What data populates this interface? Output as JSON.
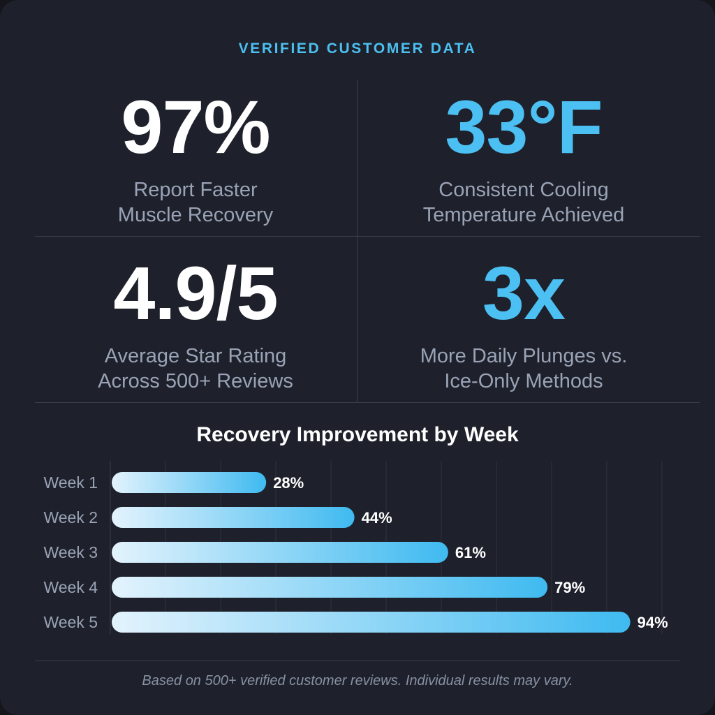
{
  "header": {
    "eyebrow": "VERIFIED CUSTOMER DATA"
  },
  "stats": [
    {
      "value": "97%",
      "label_line1": "Report Faster",
      "label_line2": "Muscle Recovery"
    },
    {
      "value": "33°F",
      "label_line1": "Consistent Cooling",
      "label_line2": "Temperature Achieved"
    },
    {
      "value": "4.9/5",
      "label_line1": "Average Star Rating",
      "label_line2": "Across 500+ Reviews"
    },
    {
      "value": "3x",
      "label_line1": "More Daily Plunges vs.",
      "label_line2": "Ice-Only Methods"
    }
  ],
  "colors": {
    "accent": "#4cc0f2",
    "bar_start": "#e3f3fd",
    "bar_end": "#3fbaf0",
    "background": "#1e212b"
  },
  "chart_data": {
    "type": "bar",
    "orientation": "horizontal",
    "title": "Recovery Improvement by Week",
    "categories": [
      "Week 1",
      "Week 2",
      "Week 3",
      "Week 4",
      "Week 5"
    ],
    "values": [
      28,
      44,
      61,
      79,
      94
    ],
    "data_labels": [
      "28%",
      "44%",
      "61%",
      "79%",
      "94%"
    ],
    "xlim": [
      0,
      100
    ],
    "grid": true
  },
  "footer": {
    "note": "Based on 500+ verified customer reviews. Individual results may vary."
  }
}
